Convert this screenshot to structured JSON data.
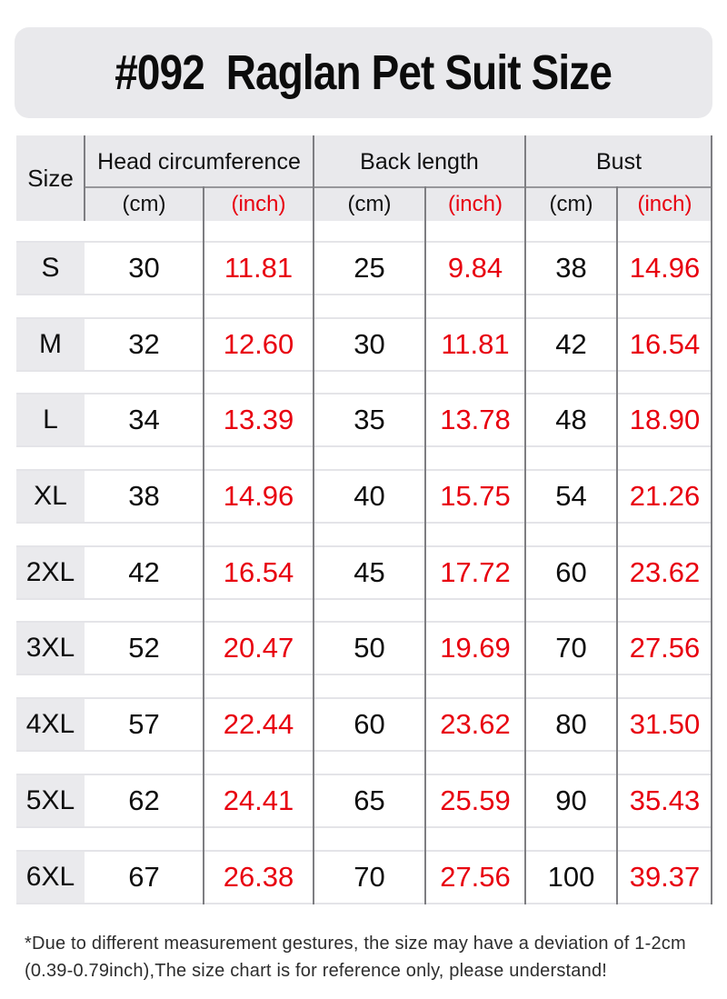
{
  "banner": {
    "title": "#092  Raglan Pet Suit Size"
  },
  "table": {
    "size_label": "Size",
    "group_head": "Head circumference",
    "group_back": "Back length",
    "group_bust": "Bust",
    "unit_cm": "(cm)",
    "unit_inch": "(inch)",
    "rows": [
      {
        "size": "S",
        "head_cm": "30",
        "head_inch": "11.81",
        "back_cm": "25",
        "back_inch": "9.84",
        "bust_cm": "38",
        "bust_inch": "14.96"
      },
      {
        "size": "M",
        "head_cm": "32",
        "head_inch": "12.60",
        "back_cm": "30",
        "back_inch": "11.81",
        "bust_cm": "42",
        "bust_inch": "16.54"
      },
      {
        "size": "L",
        "head_cm": "34",
        "head_inch": "13.39",
        "back_cm": "35",
        "back_inch": "13.78",
        "bust_cm": "48",
        "bust_inch": "18.90"
      },
      {
        "size": "XL",
        "head_cm": "38",
        "head_inch": "14.96",
        "back_cm": "40",
        "back_inch": "15.75",
        "bust_cm": "54",
        "bust_inch": "21.26"
      },
      {
        "size": "2XL",
        "head_cm": "42",
        "head_inch": "16.54",
        "back_cm": "45",
        "back_inch": "17.72",
        "bust_cm": "60",
        "bust_inch": "23.62"
      },
      {
        "size": "3XL",
        "head_cm": "52",
        "head_inch": "20.47",
        "back_cm": "50",
        "back_inch": "19.69",
        "bust_cm": "70",
        "bust_inch": "27.56"
      },
      {
        "size": "4XL",
        "head_cm": "57",
        "head_inch": "22.44",
        "back_cm": "60",
        "back_inch": "23.62",
        "bust_cm": "80",
        "bust_inch": "31.50"
      },
      {
        "size": "5XL",
        "head_cm": "62",
        "head_inch": "24.41",
        "back_cm": "65",
        "back_inch": "25.59",
        "bust_cm": "90",
        "bust_inch": "35.43"
      },
      {
        "size": "6XL",
        "head_cm": "67",
        "head_inch": "26.38",
        "back_cm": "70",
        "back_inch": "27.56",
        "bust_cm": "100",
        "bust_inch": "39.37"
      }
    ]
  },
  "footnote": {
    "line1": "*Due to different measurement gestures, the size may have a deviation of 1-2cm",
    "line2": "(0.39-0.79inch),The size chart is for reference only, please understand!"
  },
  "colors": {
    "accent_red": "#e8000f",
    "panel_gray": "#e9e9ec",
    "size_cell_gray": "#eaeaed",
    "line_dark": "#7e7e82",
    "line_light": "#e4e4e8"
  },
  "chart_data": {
    "type": "table",
    "title": "#092 Raglan Pet Suit Size",
    "columns": [
      "Size",
      "Head circumference (cm)",
      "Head circumference (inch)",
      "Back length (cm)",
      "Back length (inch)",
      "Bust (cm)",
      "Bust (inch)"
    ],
    "rows": [
      [
        "S",
        30,
        11.81,
        25,
        9.84,
        38,
        14.96
      ],
      [
        "M",
        32,
        12.6,
        30,
        11.81,
        42,
        16.54
      ],
      [
        "L",
        34,
        13.39,
        35,
        13.78,
        48,
        18.9
      ],
      [
        "XL",
        38,
        14.96,
        40,
        15.75,
        54,
        21.26
      ],
      [
        "2XL",
        42,
        16.54,
        45,
        17.72,
        60,
        23.62
      ],
      [
        "3XL",
        52,
        20.47,
        50,
        19.69,
        70,
        27.56
      ],
      [
        "4XL",
        57,
        22.44,
        60,
        23.62,
        80,
        31.5
      ],
      [
        "5XL",
        62,
        24.41,
        65,
        25.59,
        90,
        35.43
      ],
      [
        "6XL",
        67,
        26.38,
        70,
        27.56,
        100,
        39.37
      ]
    ],
    "note": "*Due to different measurement gestures, the size may have a deviation of 1-2cm (0.39-0.79inch),The size chart is for reference only, please understand!"
  }
}
